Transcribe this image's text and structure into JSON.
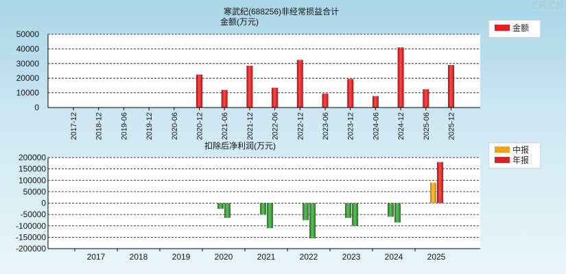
{
  "watermark": "CFi.CN",
  "colors": {
    "bar_red": "#e32020",
    "bar_green": "#2f8f2f",
    "bar_orange": "#f0a020",
    "grid": "#000000"
  },
  "chart_data": [
    {
      "type": "bar",
      "title": "寒武纪(688256)非经常损益合计",
      "ylabel": "金额(万元)",
      "categories": [
        "2017-12",
        "2018-12",
        "2019-06",
        "2019-12",
        "2020-06",
        "2020-12",
        "2021-06",
        "2021-12",
        "2022-06",
        "2022-12",
        "2023-06",
        "2023-12",
        "2024-06",
        "2024-12",
        "2025-06",
        "2025-12"
      ],
      "values": [
        0,
        0,
        0,
        0,
        0,
        22500,
        12000,
        28500,
        13500,
        32500,
        9500,
        19500,
        7800,
        41000,
        12500,
        29000
      ],
      "yticks": [
        50000,
        40000,
        30000,
        20000,
        10000,
        0
      ],
      "ylim": [
        0,
        50000
      ],
      "legend": [
        {
          "label": "金额",
          "color": "#e32020"
        }
      ]
    },
    {
      "type": "bar",
      "title": "扣除后净利润(万元)",
      "categories": [
        "2017",
        "2018",
        "2019",
        "2020",
        "2021",
        "2022",
        "2023",
        "2024",
        "2025"
      ],
      "series": [
        {
          "name": "中报",
          "values": [
            null,
            null,
            null,
            -25000,
            -50000,
            -75000,
            -65000,
            -60000,
            90000
          ],
          "color": "#f0a020"
        },
        {
          "name": "年报",
          "values": [
            null,
            null,
            null,
            -65000,
            -110000,
            -155000,
            -100000,
            -85000,
            180000
          ],
          "color": "#e32020"
        }
      ],
      "yticks": [
        200000,
        150000,
        100000,
        50000,
        0,
        -50000,
        -100000,
        -150000,
        -200000
      ],
      "ylim": [
        -200000,
        200000
      ],
      "legend": [
        {
          "label": "中报",
          "color": "#f0a020"
        },
        {
          "label": "年报",
          "color": "#e32020"
        }
      ]
    }
  ]
}
